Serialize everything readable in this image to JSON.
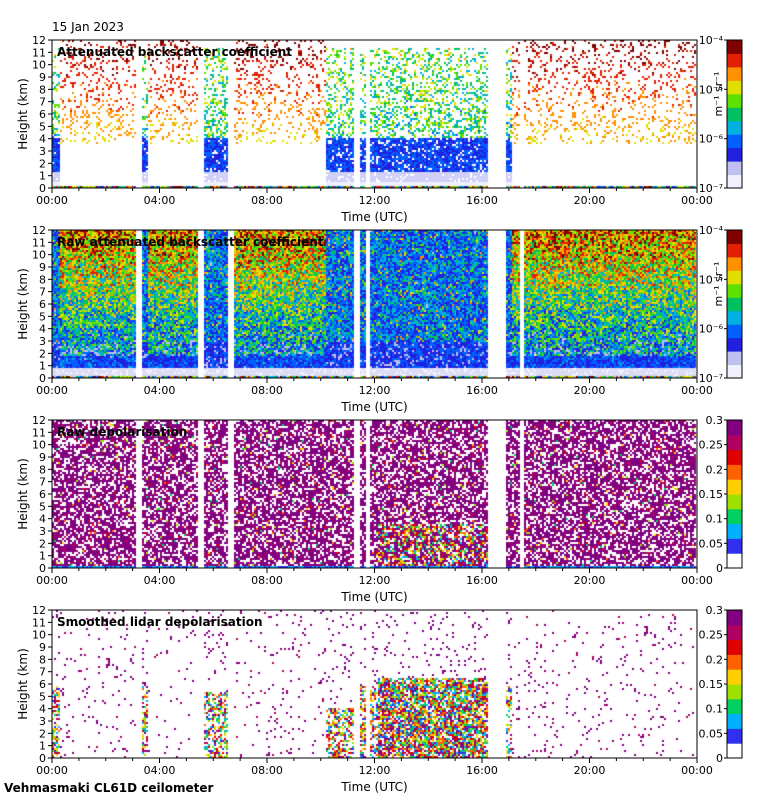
{
  "date": "15 Jan 2023",
  "footer": "Vehmasmaki CL61D ceilometer",
  "colors": {
    "backscatter": [
      "#f0f0ff",
      "#c0c0f0",
      "#2020e0",
      "#0060ff",
      "#00b0e0",
      "#00c060",
      "#60e000",
      "#e0e000",
      "#ff9000",
      "#e02000",
      "#800000"
    ],
    "depol": [
      "#ffffff",
      "#3030f0",
      "#00b0ff",
      "#00d060",
      "#a0e000",
      "#ffd000",
      "#ff6000",
      "#e00000",
      "#b00060",
      "#800080"
    ]
  },
  "chart_data": [
    {
      "type": "heatmap",
      "title": "Attenuated backscatter coefficient",
      "xlabel": "Time (UTC)",
      "ylabel": "Height (km)",
      "x_ticks": [
        "00:00",
        "04:00",
        "08:00",
        "12:00",
        "16:00",
        "20:00",
        "00:00"
      ],
      "y_ticks": [
        "0",
        "1",
        "2",
        "3",
        "4",
        "5",
        "6",
        "7",
        "8",
        "9",
        "10",
        "11",
        "12"
      ],
      "ylim": [
        0,
        12
      ],
      "colorbar_label": "m⁻¹ sr⁻¹",
      "colorbar_ticks": [
        "10⁻⁷",
        "10⁻⁶",
        "10⁻⁵",
        "10⁻⁴"
      ],
      "colorscale": "log",
      "cbar_colors": "backscatter",
      "style": "att_bs"
    },
    {
      "type": "heatmap",
      "title": "Raw attenuated backscatter coefficient",
      "xlabel": "Time (UTC)",
      "ylabel": "Height (km)",
      "x_ticks": [
        "00:00",
        "04:00",
        "08:00",
        "12:00",
        "16:00",
        "20:00",
        "00:00"
      ],
      "y_ticks": [
        "0",
        "1",
        "2",
        "3",
        "4",
        "5",
        "6",
        "7",
        "8",
        "9",
        "10",
        "11",
        "12"
      ],
      "ylim": [
        0,
        12
      ],
      "colorbar_label": "m⁻¹ sr⁻¹",
      "colorbar_ticks": [
        "10⁻⁷",
        "10⁻⁶",
        "10⁻⁵",
        "10⁻⁴"
      ],
      "colorscale": "log",
      "cbar_colors": "backscatter",
      "style": "raw_bs"
    },
    {
      "type": "heatmap",
      "title": "Raw depolarisation",
      "xlabel": "Time (UTC)",
      "ylabel": "Height (km)",
      "x_ticks": [
        "00:00",
        "04:00",
        "08:00",
        "12:00",
        "16:00",
        "20:00",
        "00:00"
      ],
      "y_ticks": [
        "0",
        "1",
        "2",
        "3",
        "4",
        "5",
        "6",
        "7",
        "8",
        "9",
        "10",
        "11",
        "12"
      ],
      "ylim": [
        0,
        12
      ],
      "colorbar_label": "",
      "colorbar_ticks": [
        "0",
        "0.05",
        "0.1",
        "0.15",
        "0.2",
        "0.25",
        "0.3"
      ],
      "colorscale": "linear",
      "cbar_colors": "depol",
      "style": "raw_dep"
    },
    {
      "type": "heatmap",
      "title": "Smoothed lidar depolarisation",
      "xlabel": "Time (UTC)",
      "ylabel": "Height (km)",
      "x_ticks": [
        "00:00",
        "04:00",
        "08:00",
        "12:00",
        "16:00",
        "20:00",
        "00:00"
      ],
      "y_ticks": [
        "0",
        "1",
        "2",
        "3",
        "4",
        "5",
        "6",
        "7",
        "8",
        "9",
        "10",
        "11",
        "12"
      ],
      "ylim": [
        0,
        12
      ],
      "colorbar_label": "",
      "colorbar_ticks": [
        "0",
        "0.05",
        "0.1",
        "0.15",
        "0.2",
        "0.25",
        "0.3"
      ],
      "colorscale": "linear",
      "cbar_colors": "depol",
      "style": "smooth_dep"
    }
  ]
}
